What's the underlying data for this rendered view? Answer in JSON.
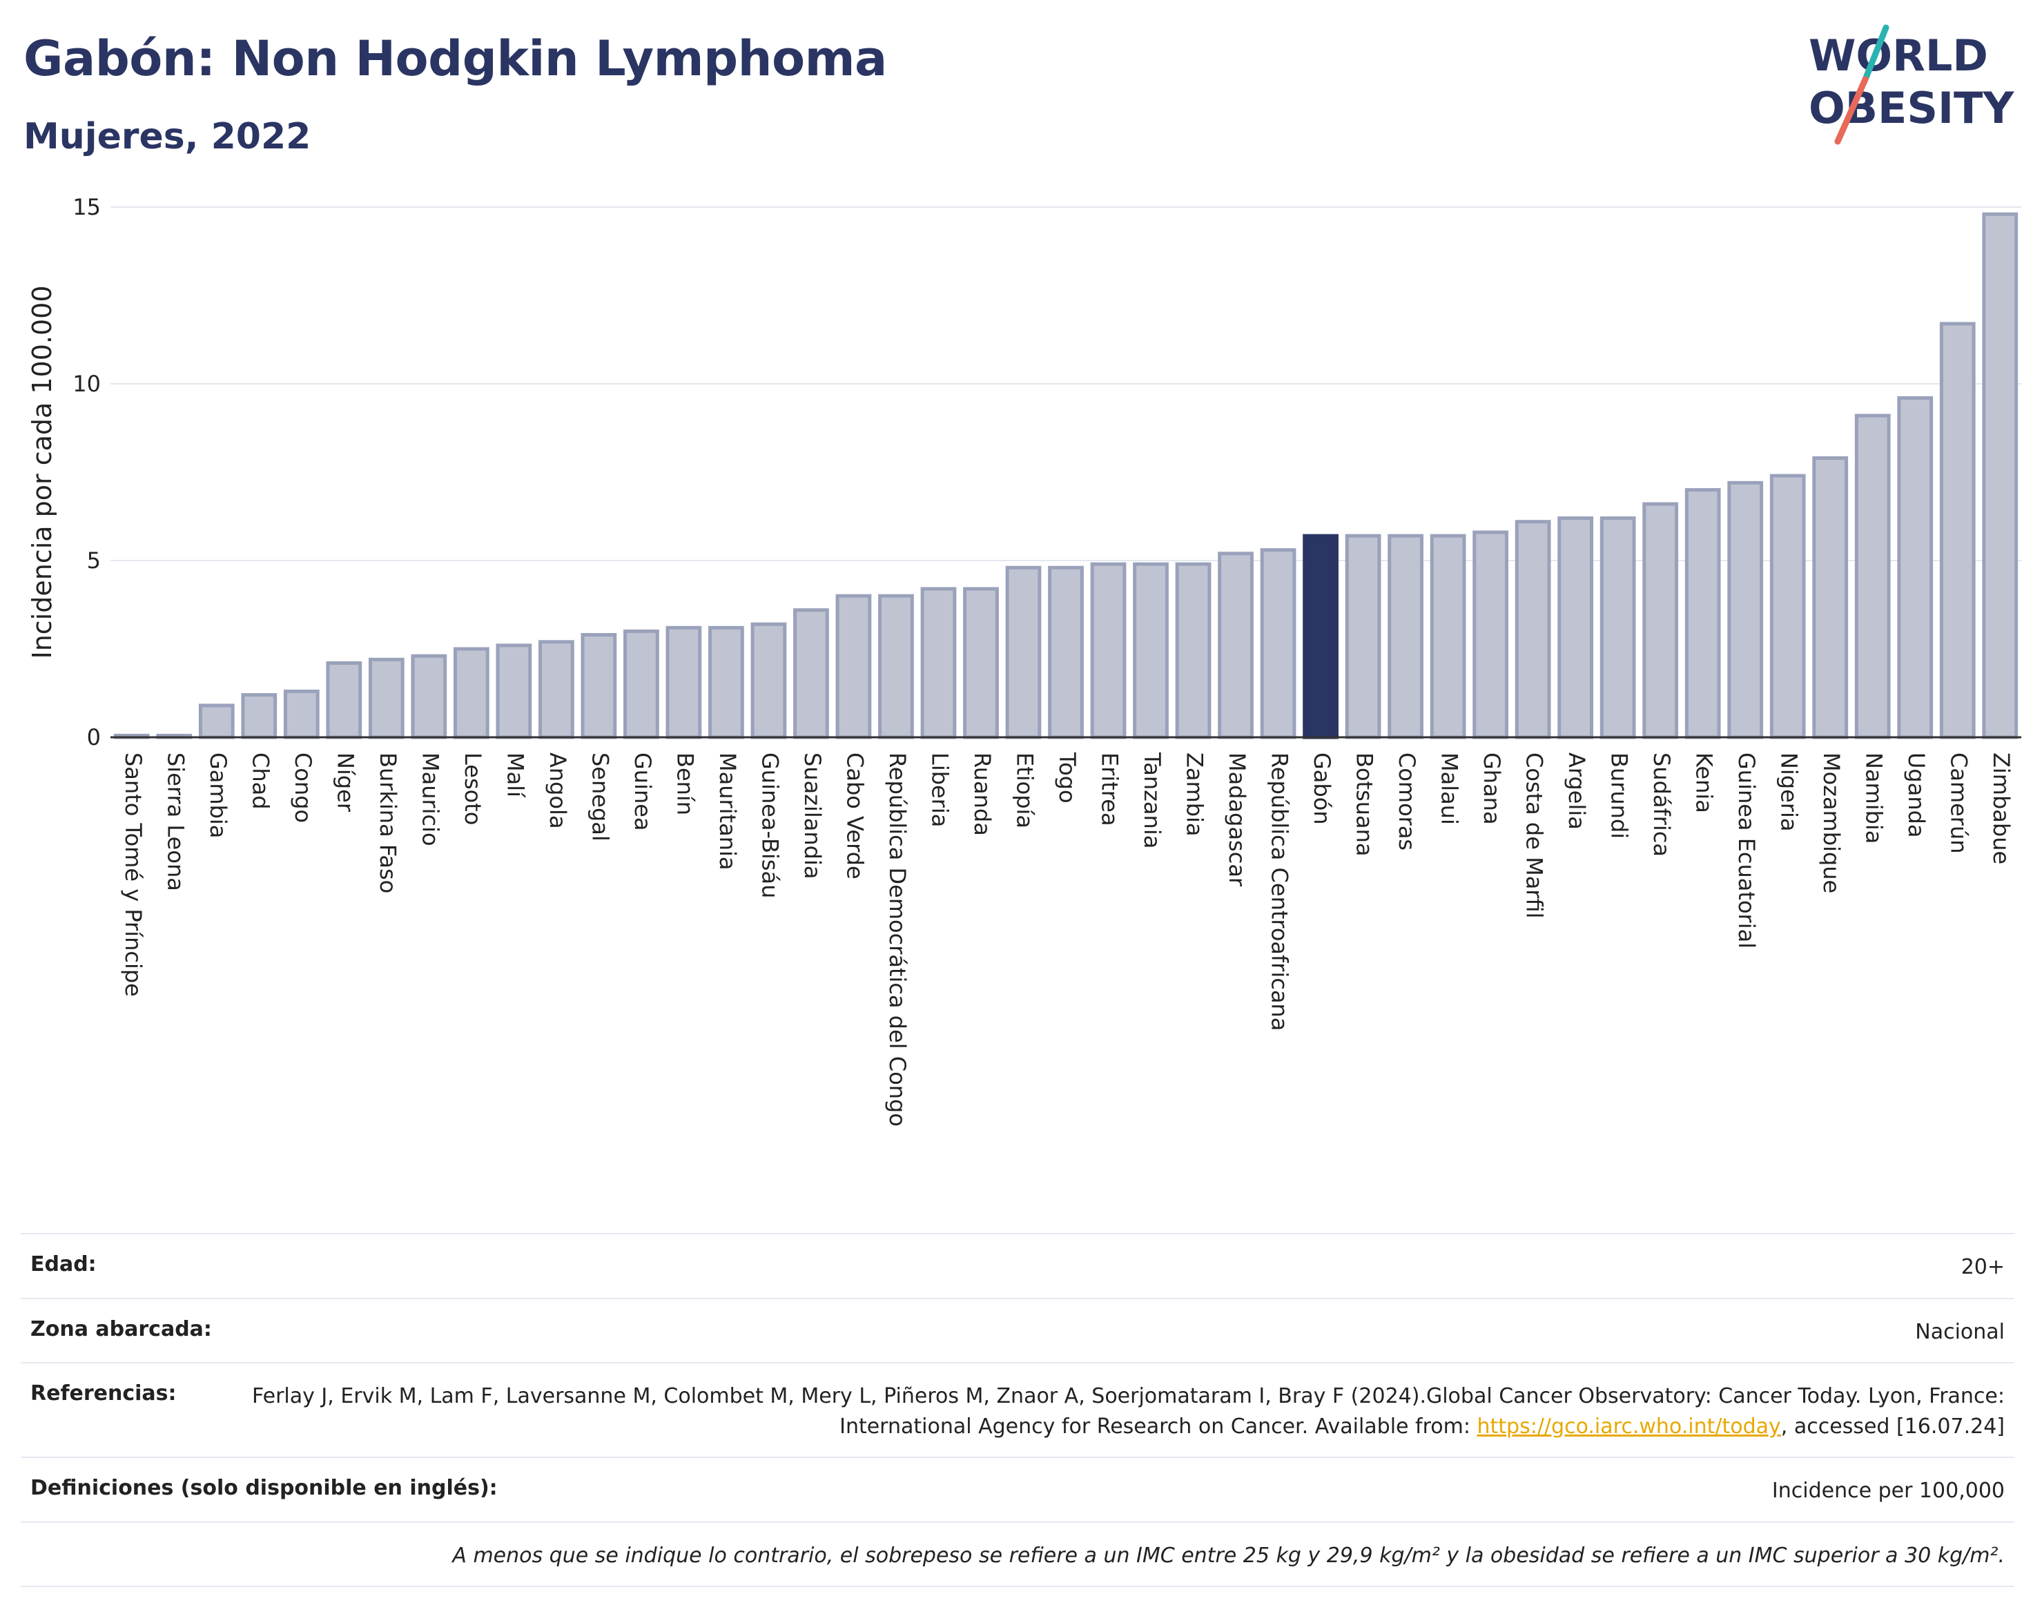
{
  "header": {
    "title": "Gabón: Non Hodgkin Lymphoma",
    "subtitle": "Mujeres, 2022"
  },
  "logo": {
    "line1": "WORLD",
    "line2": "OBESITY",
    "colors": {
      "text": "#2a3563",
      "slash_top": "#2ab3b1",
      "slash_bottom": "#e8685a"
    }
  },
  "chart_data": {
    "type": "bar",
    "ylabel": "Incidencia por cada 100.000",
    "xlabel": "",
    "ylim": [
      0,
      15
    ],
    "yticks": [
      0,
      5,
      10,
      15
    ],
    "grid": true,
    "highlight": "Gabón",
    "colors": {
      "bar": "#bfc3d2",
      "bar_edge": "#9aa1ba",
      "highlight": "#2a3563"
    },
    "categories": [
      "Santo Tomé y Príncipe",
      "Sierra Leona",
      "Gambia",
      "Chad",
      "Congo",
      "Níger",
      "Burkina Faso",
      "Mauricio",
      "Lesoto",
      "Malí",
      "Angola",
      "Senegal",
      "Guinea",
      "Benín",
      "Mauritania",
      "Guinea-Bisáu",
      "Suazilandia",
      "Cabo Verde",
      "República Democrática del Congo",
      "Liberia",
      "Ruanda",
      "Etiopía",
      "Togo",
      "Eritrea",
      "Tanzania",
      "Zambia",
      "Madagascar",
      "República Centroafricana",
      "Gabón",
      "Botsuana",
      "Comoras",
      "Malaui",
      "Ghana",
      "Costa de Marfil",
      "Argelia",
      "Burundi",
      "Sudáfrica",
      "Kenia",
      "Guinea Ecuatorial",
      "Nigeria",
      "Mozambique",
      "Namibia",
      "Uganda",
      "Camerún",
      "Zimbabue"
    ],
    "values": [
      0.05,
      0.05,
      0.9,
      1.2,
      1.3,
      2.1,
      2.2,
      2.3,
      2.5,
      2.6,
      2.7,
      2.9,
      3.0,
      3.1,
      3.1,
      3.2,
      3.6,
      4.0,
      4.0,
      4.2,
      4.2,
      4.8,
      4.8,
      4.9,
      4.9,
      4.9,
      5.2,
      5.3,
      5.7,
      5.7,
      5.7,
      5.7,
      5.8,
      6.1,
      6.2,
      6.2,
      6.6,
      7.0,
      7.2,
      7.4,
      7.9,
      9.1,
      9.6,
      11.7,
      14.8
    ]
  },
  "info": {
    "age": {
      "label": "Edad:",
      "value": "20+"
    },
    "area": {
      "label": "Zona abarcada:",
      "value": "Nacional"
    },
    "references": {
      "label": "Referencias:",
      "text_1": "Ferlay J, Ervik M, Lam F, Laversanne M, Colombet M, Mery L, Piñeros M, Znaor A, Soerjomataram I, Bray F (2024).Global Cancer Observatory: Cancer Today. Lyon, France: International Agency for Research on Cancer. Available from: ",
      "link": "https://gco.iarc.who.int/today",
      "text_2": ", accessed [16.07.24]"
    },
    "definitions": {
      "label": "Definiciones (solo disponible en inglés):",
      "value": "Incidence per 100,000"
    },
    "note": "A menos que se indique lo contrario, el sobrepeso se refiere a un IMC entre 25 kg y 29,9 kg/m² y la obesidad se refiere a un IMC superior a 30 kg/m²."
  }
}
